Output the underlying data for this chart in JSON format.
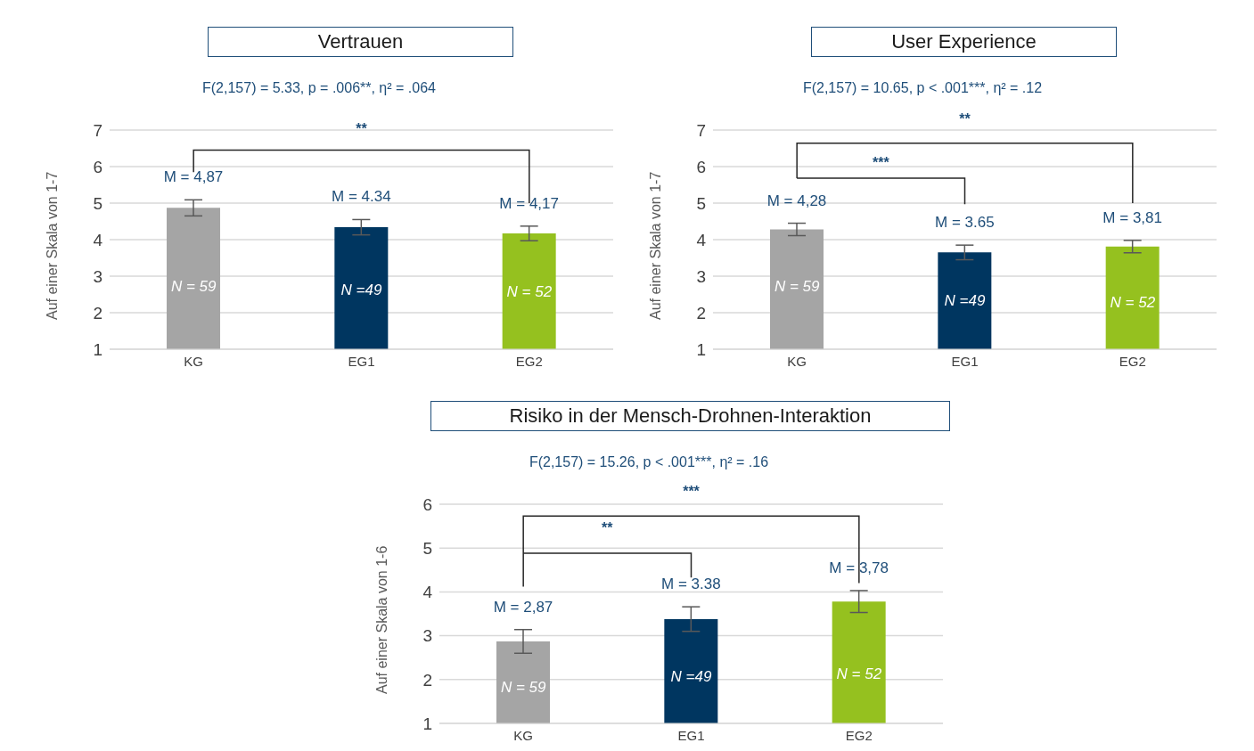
{
  "chart_data": [
    {
      "type": "bar",
      "title": "Vertrauen",
      "subtitle": "F(2,157) = 5.33, p = .006**, η² = .064",
      "ylabel": "Auf einer Skala von 1-7",
      "categories": [
        "KG",
        "EG1",
        "EG2"
      ],
      "values": [
        4.87,
        4.34,
        4.17
      ],
      "colors": [
        "#a5a5a5",
        "#003660",
        "#95c11f"
      ],
      "errors": [
        0.22,
        0.21,
        0.2
      ],
      "value_labels": [
        "M = 4,87",
        "M = 4.34",
        "M = 4,17"
      ],
      "ylim": [
        1,
        7
      ],
      "yticks": [
        1,
        2,
        3,
        4,
        5,
        6,
        7
      ],
      "grid": "y",
      "annotations": [
        "**",
        "N = 59",
        "N =49",
        "N = 52"
      ]
    },
    {
      "type": "bar",
      "title": "User Experience",
      "subtitle": "F(2,157) = 10.65, p < .001***, η² = .12",
      "ylabel": "Auf einer Skala von 1-7",
      "categories": [
        "KG",
        "EG1",
        "EG2"
      ],
      "values": [
        4.28,
        3.65,
        3.81
      ],
      "colors": [
        "#a5a5a5",
        "#003660",
        "#95c11f"
      ],
      "errors": [
        0.17,
        0.2,
        0.17
      ],
      "value_labels": [
        "M = 4,28",
        "M = 3.65",
        "M = 3,81"
      ],
      "ylim": [
        1,
        7
      ],
      "yticks": [
        1,
        2,
        3,
        4,
        5,
        6,
        7
      ],
      "grid": "y",
      "annotations": [
        "**",
        "***",
        "N = 59",
        "N =49",
        "N = 52"
      ]
    },
    {
      "type": "bar",
      "title": "Risiko in der Mensch-Drohnen-Interaktion",
      "subtitle": "F(2,157) = 15.26, p < .001***, η² = .16",
      "ylabel": "Auf einer Skala von 1-6",
      "categories": [
        "KG",
        "EG1",
        "EG2"
      ],
      "values": [
        2.87,
        3.38,
        3.78
      ],
      "colors": [
        "#a5a5a5",
        "#003660",
        "#95c11f"
      ],
      "errors": [
        0.27,
        0.28,
        0.25
      ],
      "value_labels": [
        "M = 2,87",
        "M = 3.38",
        "M = 3,78"
      ],
      "ylim": [
        1,
        6
      ],
      "yticks": [
        1,
        2,
        3,
        4,
        5,
        6
      ],
      "grid": "y",
      "annotations": [
        "***",
        "**",
        "N = 59",
        "N =49",
        "N = 52"
      ]
    }
  ]
}
